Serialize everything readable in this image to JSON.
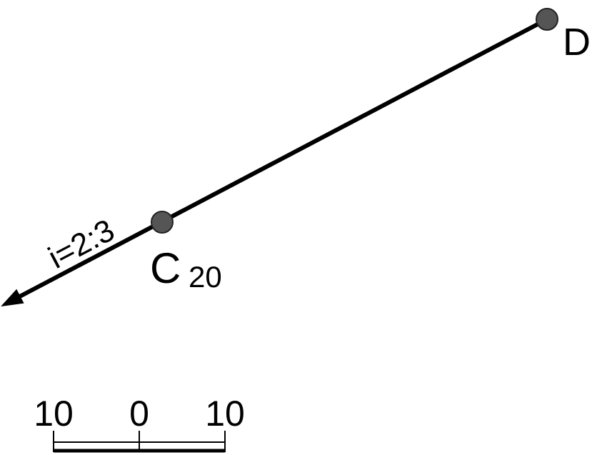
{
  "points": [
    {
      "label": "D"
    },
    {
      "label": "C",
      "subscript": "20"
    }
  ],
  "slope": {
    "label": "i=2:3"
  },
  "scale_bar": {
    "labels": [
      "10",
      "0",
      "10"
    ]
  }
}
